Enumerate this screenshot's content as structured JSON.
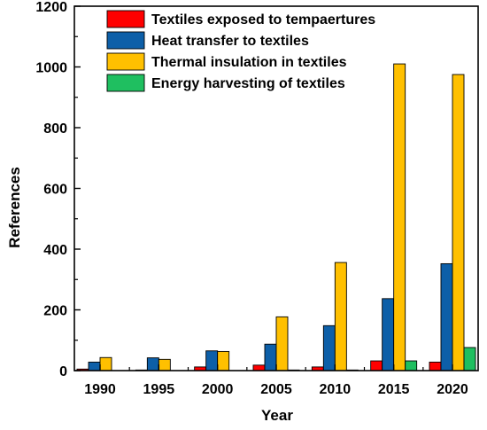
{
  "chart_data": {
    "type": "bar",
    "title": "",
    "xlabel": "Year",
    "ylabel": "References",
    "ylim": [
      0,
      1200
    ],
    "yticks": [
      0,
      200,
      400,
      600,
      800,
      1000,
      1200
    ],
    "grid": false,
    "legend_position": "top-right",
    "categories": [
      "1990",
      "1995",
      "2000",
      "2005",
      "2010",
      "2015",
      "2020"
    ],
    "series": [
      {
        "name": "Textiles exposed to tempaertures",
        "color": "#ff0000",
        "values": [
          5,
          2,
          12,
          18,
          12,
          32,
          28
        ]
      },
      {
        "name": "Heat transfer to textiles",
        "color": "#0d5fa8",
        "values": [
          28,
          42,
          65,
          87,
          148,
          237,
          352
        ]
      },
      {
        "name": "Thermal insulation in textiles",
        "color": "#ffc000",
        "values": [
          43,
          37,
          63,
          177,
          356,
          1010,
          975
        ]
      },
      {
        "name": "Energy harvesting of textiles",
        "color": "#1fbf60",
        "values": [
          0,
          0,
          0,
          2,
          2,
          32,
          76
        ]
      }
    ]
  }
}
